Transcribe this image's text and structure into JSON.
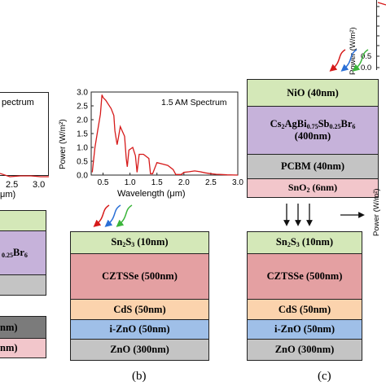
{
  "colors": {
    "green": "#d4e8b8",
    "purple": "#c6b2da",
    "red": "#e4a0a2",
    "orange": "#fbd3ad",
    "blue": "#9fbfe8",
    "gray": "#c4c4c4",
    "gray_dark": "#7b7b7b",
    "pink": "#f2c6cb",
    "spectrum_line": "#d61a1a"
  },
  "panel_a": {
    "spectrum_title_fragment": "pectrum",
    "tick_labels": [
      "2.5",
      "3.0"
    ],
    "xlabel_fragment": "μm)",
    "layers": [
      {
        "label": "",
        "sub": "",
        "tail": ""
      },
      {
        "label": "0.25",
        "sub": "",
        "tail": "Br6"
      },
      {
        "label": "",
        "sub": "",
        "tail": ""
      },
      {
        "label": "nm)",
        "sub": "",
        "tail": ""
      },
      {
        "label": "nm)",
        "sub": "",
        "tail": ""
      }
    ]
  },
  "panel_b": {
    "caption": "(b)",
    "spectrum_title": "1.5 AM Spectrum",
    "y_label": "Power (W/m²)",
    "x_label": "Wavelength (μm)",
    "y_ticks": [
      "3.0",
      "2.5",
      "2.0",
      "1.5",
      "1.0",
      "0.5",
      "0.0"
    ],
    "x_ticks": [
      "0.5",
      "1.0",
      "1.5",
      "2.0",
      "2.5",
      "3.0"
    ],
    "layers": [
      {
        "pre": "Sn",
        "sub1": "2",
        "mid": "S",
        "sub2": "3",
        "post": " (10nm)"
      },
      {
        "pre": "CZTSSe (500nm)"
      },
      {
        "pre": "CdS (50nm)"
      },
      {
        "pre": "i-ZnO (50nm)"
      },
      {
        "pre": "ZnO (300nm)"
      }
    ]
  },
  "panel_c": {
    "caption": "(c)",
    "top_y_label": "Power (W/m²)",
    "top_y_ticks": [
      "0.5",
      "0.0"
    ],
    "side_y_label": "Power (W/m²)",
    "top_stack": [
      {
        "text": "NiO (40nm)"
      },
      {
        "text": "Cs2AgBi0.75Sb0.25Br6 (400nm)"
      },
      {
        "text": "PCBM (40nm)"
      },
      {
        "text": "SnO2 (6nm)"
      }
    ],
    "bottom_stack": [
      {
        "text": "Sn2S3 (10nm)"
      },
      {
        "text": "CZTSSe (500nm)"
      },
      {
        "text": "CdS (50nm)"
      },
      {
        "text": "i-ZnO (50nm)"
      },
      {
        "text": "ZnO (300nm)"
      }
    ]
  },
  "chart_data": {
    "type": "line",
    "title": "1.5 AM Spectrum",
    "xlabel": "Wavelength (μm)",
    "ylabel": "Power (W/m²)",
    "xlim": [
      0.28,
      3.0
    ],
    "ylim": [
      0,
      3.0
    ],
    "series": [
      {
        "x": [
          0.3,
          0.35,
          0.4,
          0.45,
          0.48,
          0.5,
          0.55,
          0.6,
          0.65,
          0.7,
          0.72,
          0.76,
          0.78,
          0.82,
          0.9,
          0.93,
          0.95,
          0.98,
          1.05,
          1.1,
          1.13,
          1.17,
          1.25,
          1.35,
          1.38,
          1.42,
          1.5,
          1.6,
          1.7,
          1.8,
          1.85,
          1.95,
          2.0,
          2.1,
          2.2,
          2.3,
          2.4,
          2.5,
          2.6,
          2.7,
          2.8,
          3.0
        ],
        "y": [
          0.1,
          1.0,
          1.6,
          2.2,
          2.9,
          2.8,
          2.7,
          2.55,
          2.4,
          2.15,
          1.6,
          1.1,
          1.3,
          1.75,
          1.4,
          0.6,
          0.3,
          0.9,
          1.0,
          0.7,
          0.1,
          0.75,
          0.75,
          0.6,
          0.05,
          0.05,
          0.45,
          0.4,
          0.35,
          0.2,
          0.02,
          0.02,
          0.1,
          0.12,
          0.15,
          0.12,
          0.08,
          0.05,
          0.03,
          0.02,
          0.01,
          0.0
        ]
      }
    ]
  }
}
